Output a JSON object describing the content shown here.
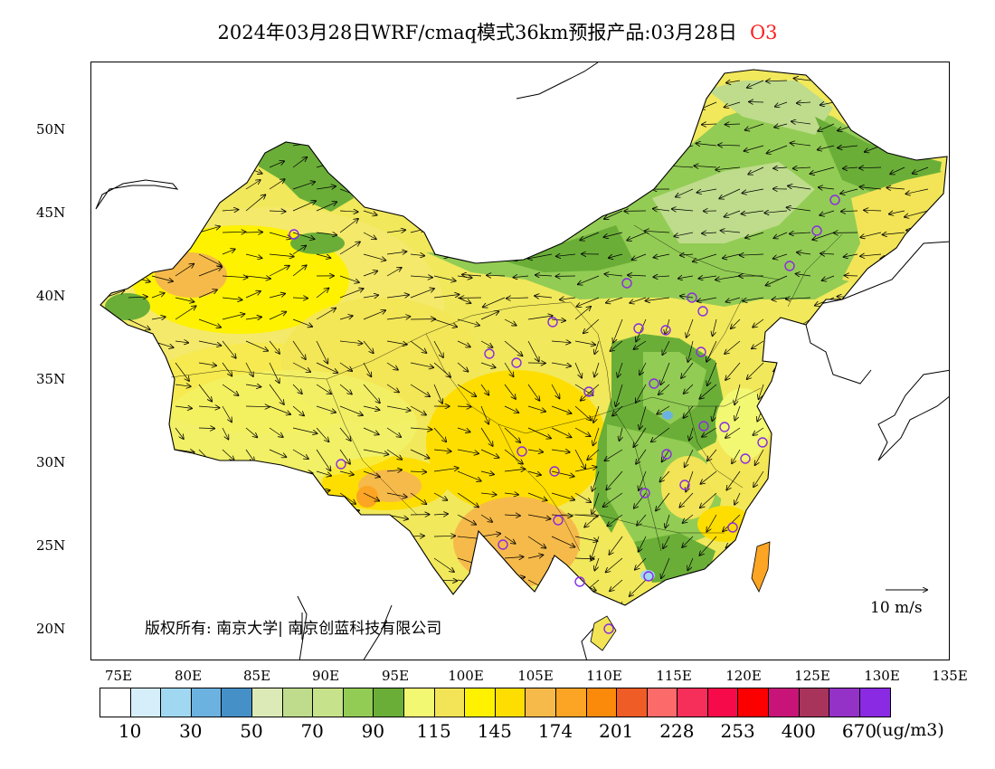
{
  "title": {
    "text": "2024年03月28日WRF/cmaq模式36km预报产品:03月28日",
    "species": "O3"
  },
  "map": {
    "lat_labels": [
      "50N",
      "45N",
      "40N",
      "35N",
      "30N",
      "25N",
      "20N"
    ],
    "lon_labels": [
      "75E",
      "80E",
      "85E",
      "90E",
      "95E",
      "100E",
      "105E",
      "110E",
      "115E",
      "120E",
      "125E",
      "130E",
      "135E"
    ],
    "copyright": "版权所有: 南京大学| 南京创蓝科技有限公司",
    "wind_reference": "10 m/s"
  },
  "legend": {
    "unit": "(ug/m3)",
    "labels": [
      "10",
      "30",
      "50",
      "70",
      "90",
      "115",
      "145",
      "174",
      "201",
      "228",
      "253",
      "400",
      "670"
    ],
    "colors": [
      "#ffffff",
      "#d6eefa",
      "#a0d8f2",
      "#6cb2e0",
      "#4690c8",
      "#dceab8",
      "#bedc8c",
      "#c6e28a",
      "#92cc54",
      "#6aae38",
      "#f2f872",
      "#f2e456",
      "#fef200",
      "#fede00",
      "#f6ba4a",
      "#fca424",
      "#fc8a0a",
      "#f05c26",
      "#fd6a6a",
      "#f62e5a",
      "#f60a4a",
      "#fc0000",
      "#c81478",
      "#a8345c",
      "#9432c8",
      "#8a2ae2"
    ]
  }
}
